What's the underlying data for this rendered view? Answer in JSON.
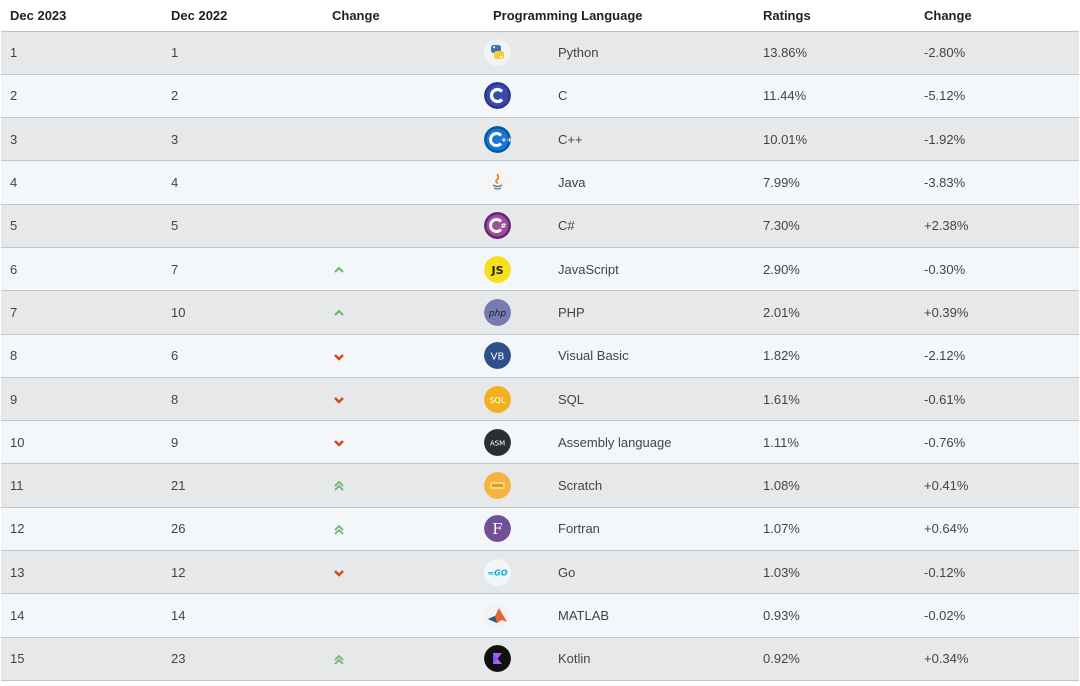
{
  "headers": [
    "Dec 2023",
    "Dec 2022",
    "Change",
    "Programming Language",
    "Ratings",
    "Change"
  ],
  "colors": {
    "up": "#6db36d",
    "down": "#d0491f"
  },
  "rows": [
    {
      "dec2023": "1",
      "dec2022": "1",
      "change_icon": "none",
      "logo": "python-icon",
      "language": "Python",
      "rating": "13.86%",
      "change": "-2.80%"
    },
    {
      "dec2023": "2",
      "dec2022": "2",
      "change_icon": "none",
      "logo": "c-icon",
      "language": "C",
      "rating": "11.44%",
      "change": "-5.12%"
    },
    {
      "dec2023": "3",
      "dec2022": "3",
      "change_icon": "none",
      "logo": "cpp-icon",
      "language": "C++",
      "rating": "10.01%",
      "change": "-1.92%"
    },
    {
      "dec2023": "4",
      "dec2022": "4",
      "change_icon": "none",
      "logo": "java-icon",
      "language": "Java",
      "rating": "7.99%",
      "change": "-3.83%"
    },
    {
      "dec2023": "5",
      "dec2022": "5",
      "change_icon": "none",
      "logo": "csharp-icon",
      "language": "C#",
      "rating": "7.30%",
      "change": "+2.38%"
    },
    {
      "dec2023": "6",
      "dec2022": "7",
      "change_icon": "up",
      "logo": "javascript-icon",
      "language": "JavaScript",
      "rating": "2.90%",
      "change": "-0.30%"
    },
    {
      "dec2023": "7",
      "dec2022": "10",
      "change_icon": "up",
      "logo": "php-icon",
      "language": "PHP",
      "rating": "2.01%",
      "change": "+0.39%"
    },
    {
      "dec2023": "8",
      "dec2022": "6",
      "change_icon": "down",
      "logo": "visual-basic-icon",
      "language": "Visual Basic",
      "rating": "1.82%",
      "change": "-2.12%"
    },
    {
      "dec2023": "9",
      "dec2022": "8",
      "change_icon": "down",
      "logo": "sql-icon",
      "language": "SQL",
      "rating": "1.61%",
      "change": "-0.61%"
    },
    {
      "dec2023": "10",
      "dec2022": "9",
      "change_icon": "down",
      "logo": "assembly-icon",
      "language": "Assembly language",
      "rating": "1.11%",
      "change": "-0.76%"
    },
    {
      "dec2023": "11",
      "dec2022": "21",
      "change_icon": "double-up",
      "logo": "scratch-icon",
      "language": "Scratch",
      "rating": "1.08%",
      "change": "+0.41%"
    },
    {
      "dec2023": "12",
      "dec2022": "26",
      "change_icon": "double-up",
      "logo": "fortran-icon",
      "language": "Fortran",
      "rating": "1.07%",
      "change": "+0.64%"
    },
    {
      "dec2023": "13",
      "dec2022": "12",
      "change_icon": "down",
      "logo": "go-icon",
      "language": "Go",
      "rating": "1.03%",
      "change": "-0.12%"
    },
    {
      "dec2023": "14",
      "dec2022": "14",
      "change_icon": "none",
      "logo": "matlab-icon",
      "language": "MATLAB",
      "rating": "0.93%",
      "change": "-0.02%"
    },
    {
      "dec2023": "15",
      "dec2022": "23",
      "change_icon": "double-up",
      "logo": "kotlin-icon",
      "language": "Kotlin",
      "rating": "0.92%",
      "change": "+0.34%"
    }
  ],
  "logo_text": {
    "javascript-icon": "JS",
    "php-icon": "php",
    "visual-basic-icon": "VB",
    "sql-icon": "SQL",
    "assembly-icon": "ASM",
    "fortran-icon": "F",
    "go-icon": "=GO"
  }
}
